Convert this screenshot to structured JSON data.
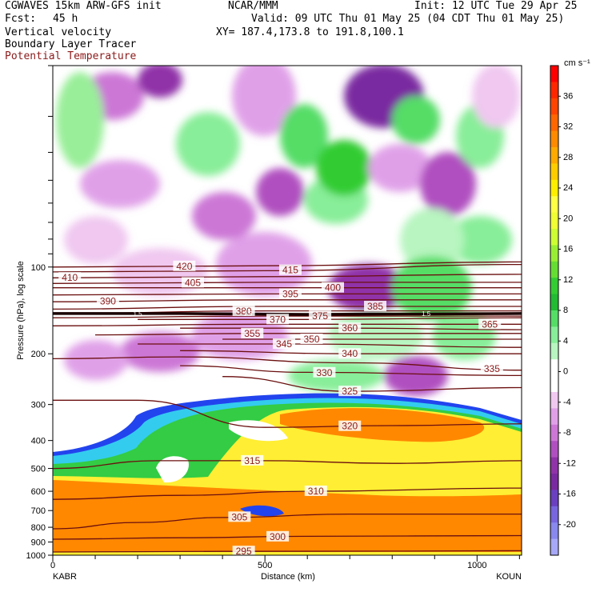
{
  "header": {
    "left1": "CGWAVES 15km ARW-GFS init",
    "left2_label": "Fcst:",
    "left2_value": "45 h",
    "center1": "NCAR/MMM",
    "right1": "Init: 12 UTC Tue 29 Apr 25",
    "right2": "Valid: 09 UTC Thu 01 May 25 (04 CDT Thu 01 May 25)",
    "field1": "Vertical velocity",
    "field2": "Boundary Layer Tracer",
    "field3": "Potential Temperature",
    "xy": "XY= 187.4,173.8 to 191.8,100.1"
  },
  "colors": {
    "isentrope": "#6b0f0f",
    "tropopause": "#1a0000"
  },
  "chart_data": {
    "type": "heatmap",
    "title": "",
    "xlabel": "Distance (km)",
    "ylabel": "Pressure (hPa), log scale",
    "xlim": [
      0,
      1105
    ],
    "ylim": [
      1000,
      20
    ],
    "x_ticks": [
      0,
      500,
      1000
    ],
    "y_ticks": [
      100,
      200,
      300,
      400,
      500,
      600,
      700,
      800,
      900,
      1000
    ],
    "left_end": "KABR",
    "right_end": "KOUN",
    "colorbar": {
      "unit": "cm s⁻¹",
      "ticks": [
        36,
        32,
        28,
        24,
        20,
        16,
        12,
        8,
        4,
        0,
        -4,
        -8,
        -12,
        -16,
        -20
      ],
      "colors": [
        "#ff0000",
        "#ff2600",
        "#ff4400",
        "#ff6600",
        "#ff8a00",
        "#ffaa00",
        "#ffcc00",
        "#ffee00",
        "#ffff44",
        "#eeff33",
        "#ccff33",
        "#99ee33",
        "#66dd33",
        "#33cc33",
        "#22bb33",
        "#55dd66",
        "#88ee99",
        "#b8f5c0",
        "#ffffff",
        "#ffffff",
        "#f0c8f0",
        "#e0a0e8",
        "#cc77d6",
        "#b050c0",
        "#9033a8",
        "#7a2aa0",
        "#6a40c0",
        "#7766dd",
        "#8888ee",
        "#a8a8f8"
      ]
    },
    "isentropes": [
      {
        "theta": 295,
        "points": [
          [
            0,
            975
          ],
          [
            400,
            970
          ],
          [
            800,
            968
          ],
          [
            1105,
            965
          ]
        ],
        "label_x": 450
      },
      {
        "theta": 300,
        "points": [
          [
            0,
            880
          ],
          [
            300,
            870
          ],
          [
            600,
            860
          ],
          [
            1105,
            855
          ]
        ],
        "label_x": 530
      },
      {
        "theta": 305,
        "points": [
          [
            0,
            810
          ],
          [
            200,
            770
          ],
          [
            400,
            740
          ],
          [
            700,
            720
          ],
          [
            1105,
            720
          ]
        ],
        "label_x": 440
      },
      {
        "theta": 310,
        "points": [
          [
            0,
            640
          ],
          [
            300,
            620
          ],
          [
            600,
            600
          ],
          [
            1105,
            585
          ]
        ],
        "label_x": 620
      },
      {
        "theta": 315,
        "points": [
          [
            0,
            500
          ],
          [
            250,
            470
          ],
          [
            500,
            470
          ],
          [
            800,
            480
          ],
          [
            1105,
            470
          ]
        ],
        "label_x": 470
      },
      {
        "theta": 320,
        "points": [
          [
            0,
            290
          ],
          [
            200,
            290
          ],
          [
            500,
            360
          ],
          [
            800,
            355
          ],
          [
            1105,
            350
          ]
        ],
        "label_x": 700
      },
      {
        "theta": 325,
        "points": [
          [
            400,
            240
          ],
          [
            700,
            270
          ],
          [
            1105,
            262
          ]
        ],
        "label_x": 700
      },
      {
        "theta": 330,
        "points": [
          [
            300,
            220
          ],
          [
            600,
            232
          ],
          [
            1105,
            238
          ]
        ],
        "label_x": 640
      },
      {
        "theta": 335,
        "points": [
          [
            0,
            208
          ],
          [
            300,
            205
          ],
          [
            700,
            215
          ],
          [
            1105,
            228
          ]
        ],
        "label_x": 1035
      },
      {
        "theta": 340,
        "points": [
          [
            300,
            195
          ],
          [
            700,
            200
          ],
          [
            1105,
            200
          ]
        ],
        "label_x": 700
      },
      {
        "theta": 345,
        "points": [
          [
            200,
            185
          ],
          [
            600,
            185
          ],
          [
            1105,
            190
          ]
        ],
        "label_x": 545
      },
      {
        "theta": 350,
        "points": [
          [
            400,
            178
          ],
          [
            800,
            178
          ],
          [
            1105,
            178
          ]
        ],
        "label_x": 610
      },
      {
        "theta": 355,
        "points": [
          [
            100,
            172
          ],
          [
            500,
            170
          ],
          [
            1105,
            170
          ]
        ],
        "label_x": 470
      },
      {
        "theta": 360,
        "points": [
          [
            300,
            163
          ],
          [
            700,
            163
          ],
          [
            1105,
            165
          ]
        ],
        "label_x": 700
      },
      {
        "theta": 365,
        "points": [
          [
            0,
            160
          ],
          [
            500,
            158
          ],
          [
            1105,
            158
          ]
        ],
        "label_x": 1030
      },
      {
        "theta": 370,
        "points": [
          [
            200,
            152
          ],
          [
            600,
            152
          ],
          [
            1105,
            150
          ]
        ],
        "label_x": 530
      },
      {
        "theta": 375,
        "points": [
          [
            0,
            150
          ],
          [
            500,
            148
          ],
          [
            1105,
            148
          ]
        ],
        "label_x": 630
      },
      {
        "theta": 380,
        "points": [
          [
            0,
            145
          ],
          [
            500,
            142
          ],
          [
            1105,
            142
          ]
        ],
        "label_x": 450
      },
      {
        "theta": 385,
        "points": [
          [
            0,
            140
          ],
          [
            500,
            137
          ],
          [
            1105,
            137
          ]
        ],
        "label_x": 760
      },
      {
        "theta": 390,
        "points": [
          [
            0,
            132
          ],
          [
            500,
            130
          ],
          [
            1105,
            130
          ]
        ],
        "label_x": 130
      },
      {
        "theta": 395,
        "points": [
          [
            0,
            125
          ],
          [
            500,
            124
          ],
          [
            1105,
            124
          ]
        ],
        "label_x": 560
      },
      {
        "theta": 400,
        "points": [
          [
            0,
            118
          ],
          [
            500,
            118
          ],
          [
            1105,
            118
          ]
        ],
        "label_x": 660
      },
      {
        "theta": 405,
        "points": [
          [
            0,
            114
          ],
          [
            500,
            113
          ],
          [
            1105,
            113
          ]
        ],
        "label_x": 330
      },
      {
        "theta": 410,
        "points": [
          [
            0,
            109
          ],
          [
            500,
            108
          ],
          [
            1105,
            106
          ]
        ],
        "label_x": 40
      },
      {
        "theta": 415,
        "points": [
          [
            0,
            104
          ],
          [
            500,
            103
          ],
          [
            1105,
            98
          ]
        ],
        "label_x": 560
      },
      {
        "theta": 420,
        "points": [
          [
            0,
            100
          ],
          [
            500,
            99
          ],
          [
            1105,
            96
          ]
        ],
        "label_x": 310
      }
    ],
    "tropopause": [
      [
        0,
        145
      ],
      [
        300,
        145
      ],
      [
        600,
        146
      ],
      [
        1105,
        145
      ]
    ],
    "tropopause_labels": [
      "1.5",
      "1.5",
      "1.5",
      "1.5"
    ]
  }
}
